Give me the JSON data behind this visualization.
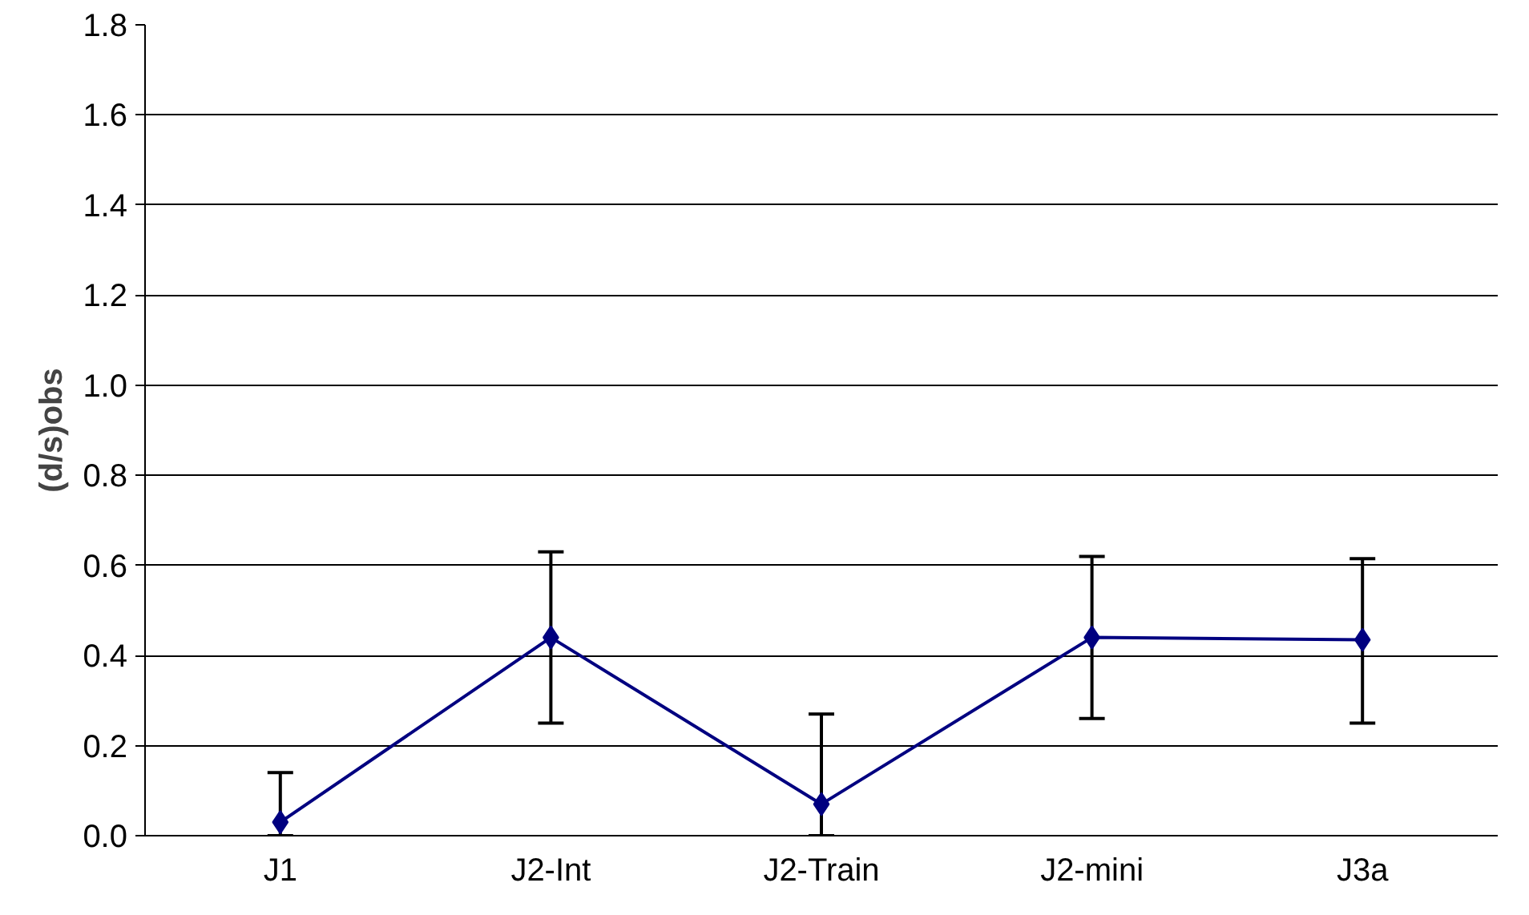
{
  "chart_data": {
    "type": "line",
    "ylabel": "(d/s)obs",
    "categories": [
      "J1",
      "J2-Int",
      "J2-Train",
      "J2-mini",
      "J3a"
    ],
    "series": [
      {
        "color": "#000080",
        "values": [
          0.03,
          0.44,
          0.07,
          0.44,
          0.435
        ],
        "errors": [
          [
            0,
            0.14
          ],
          [
            0.25,
            0.63
          ],
          [
            0,
            0.27
          ],
          [
            0.26,
            0.62
          ],
          [
            0.25,
            0.615
          ]
        ]
      }
    ],
    "ylim": [
      0,
      1.8
    ],
    "yticks": [
      {
        "value": 0,
        "label": "0.0"
      },
      {
        "value": 0.2,
        "label": "0.2"
      },
      {
        "value": 0.4,
        "label": "0.4"
      },
      {
        "value": 0.6,
        "label": "0.6"
      },
      {
        "value": 0.8,
        "label": "0.8"
      },
      {
        "value": 1.0,
        "label": "1.0"
      },
      {
        "value": 1.2,
        "label": "1.2"
      },
      {
        "value": 1.4,
        "label": "1.4"
      },
      {
        "value": 1.6,
        "label": "1.6"
      },
      {
        "value": 1.8,
        "label": "1.8"
      }
    ],
    "grid": "y",
    "marker": "diamond",
    "line_style": "solid"
  }
}
